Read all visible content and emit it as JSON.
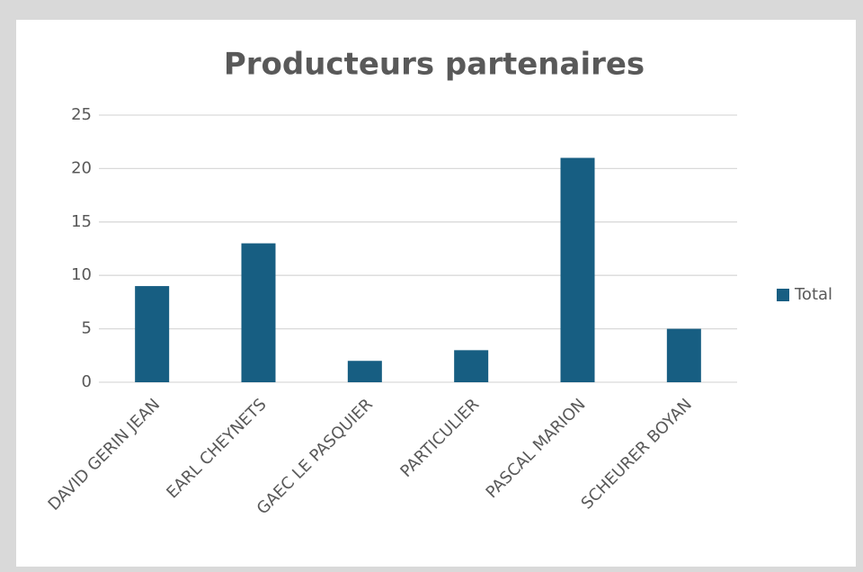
{
  "chart_data": {
    "type": "bar",
    "title": "Producteurs partenaires",
    "categories": [
      "DAVID GERIN JEAN",
      "EARL CHEYNETS",
      "GAEC LE PASQUIER",
      "PARTICULIER",
      "PASCAL MARION",
      "SCHEURER BOYAN"
    ],
    "series": [
      {
        "name": "Total",
        "color": "#175e82",
        "values": [
          9,
          13,
          2,
          3,
          21,
          5
        ]
      }
    ],
    "ylim": [
      0,
      25
    ],
    "yticks": [
      0,
      5,
      10,
      15,
      20,
      25
    ],
    "grid": true,
    "legend": "right"
  }
}
